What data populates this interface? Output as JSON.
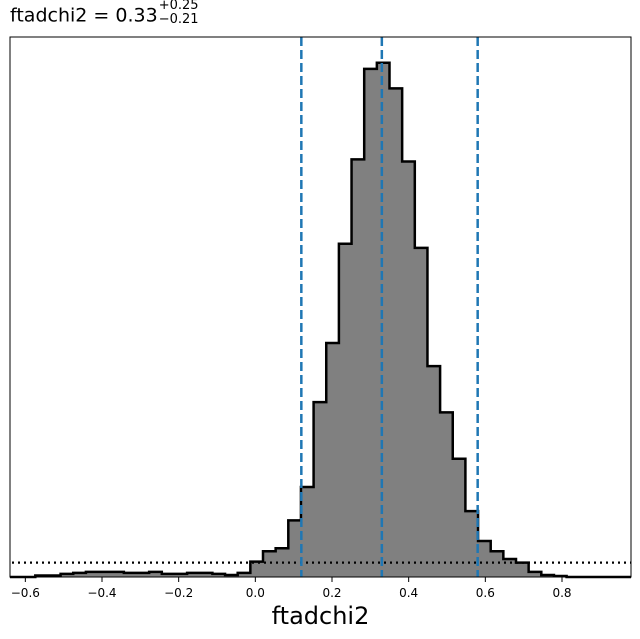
{
  "chart_data": {
    "type": "histogram",
    "title": {
      "param": "ftadchi2",
      "equals": " = ",
      "value": "0.33",
      "err_plus": "+0.25",
      "err_minus": "−0.21"
    },
    "xlabel": "ftadchi2",
    "ylabel": "",
    "xlim": [
      -0.64,
      0.98
    ],
    "ylim": [
      0,
      1.05
    ],
    "xticks": [
      -0.6,
      -0.4,
      -0.2,
      0.0,
      0.2,
      0.4,
      0.6,
      0.8
    ],
    "xtick_labels": [
      "−0.6",
      "−0.4",
      "−0.2",
      "0.0",
      "0.2",
      "0.4",
      "0.6",
      "0.8"
    ],
    "bin_edges": [
      -0.64,
      -0.607,
      -0.574,
      -0.541,
      -0.508,
      -0.475,
      -0.442,
      -0.409,
      -0.376,
      -0.343,
      -0.31,
      -0.277,
      -0.244,
      -0.211,
      -0.178,
      -0.145,
      -0.112,
      -0.079,
      -0.046,
      -0.013,
      0.02,
      0.053,
      0.086,
      0.119,
      0.152,
      0.185,
      0.218,
      0.251,
      0.284,
      0.317,
      0.35,
      0.383,
      0.416,
      0.449,
      0.482,
      0.515,
      0.548,
      0.581,
      0.614,
      0.647,
      0.68,
      0.713,
      0.746,
      0.779,
      0.812,
      0.845,
      0.878,
      0.911,
      0.944,
      0.98
    ],
    "counts": [
      0.0,
      0.0,
      0.003,
      0.003,
      0.006,
      0.008,
      0.01,
      0.01,
      0.01,
      0.008,
      0.008,
      0.01,
      0.006,
      0.006,
      0.008,
      0.008,
      0.006,
      0.004,
      0.008,
      0.03,
      0.05,
      0.056,
      0.11,
      0.175,
      0.34,
      0.455,
      0.648,
      0.812,
      0.988,
      1.0,
      0.95,
      0.808,
      0.64,
      0.41,
      0.32,
      0.23,
      0.128,
      0.07,
      0.05,
      0.035,
      0.028,
      0.01,
      0.004,
      0.002,
      0.0,
      0.0,
      0.0,
      0.0,
      0.0
    ],
    "fill_color": "#808080",
    "edge_color": "#000000",
    "quantile_lines": [
      0.12,
      0.33,
      0.58
    ],
    "quantile_color": "#1f77b4",
    "prior_level": 0.028,
    "prior_color": "#000000"
  }
}
